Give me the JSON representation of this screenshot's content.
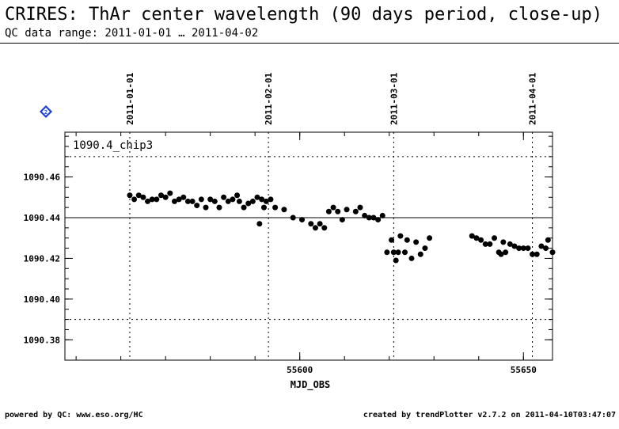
{
  "header": {
    "title": "CRIRES: ThAr center wavelength (90 days period, close-up)",
    "subtitle": "QC data range: 2011-01-01 … 2011-04-02"
  },
  "footer": {
    "left": "powered by QC: www.eso.org/HC",
    "right": "created by trendPlotter v2.7.2 on 2011-04-10T03:47:07"
  },
  "help_icon": "help-diamond-icon",
  "chart_data": {
    "type": "scatter",
    "panel_label": "1090.4_chip3",
    "xlabel": "MJD_OBS",
    "ylabel": "",
    "xlim": [
      55547.5,
      55656.5
    ],
    "ylim": [
      1090.37,
      1090.482
    ],
    "x_ticks": [
      55600,
      55650
    ],
    "y_ticks": [
      1090.38,
      1090.4,
      1090.42,
      1090.44,
      1090.46
    ],
    "y_tick_labels": [
      "1090.38",
      "1090.40",
      "1090.42",
      "1090.44",
      "1090.46"
    ],
    "reference_line": 1090.44,
    "limit_lines": [
      1090.39,
      1090.47
    ],
    "date_markers": [
      {
        "x": 55562,
        "label": "2011-01-01"
      },
      {
        "x": 55593,
        "label": "2011-02-01"
      },
      {
        "x": 55621,
        "label": "2011-03-01"
      },
      {
        "x": 55652,
        "label": "2011-04-01"
      }
    ],
    "points": [
      [
        55562.0,
        1090.451
      ],
      [
        55563.0,
        1090.449
      ],
      [
        55564.0,
        1090.451
      ],
      [
        55565.0,
        1090.45
      ],
      [
        55566.0,
        1090.448
      ],
      [
        55567.0,
        1090.449
      ],
      [
        55568.0,
        1090.449
      ],
      [
        55569.0,
        1090.451
      ],
      [
        55570.0,
        1090.45
      ],
      [
        55571.0,
        1090.452
      ],
      [
        55572.0,
        1090.448
      ],
      [
        55573.0,
        1090.449
      ],
      [
        55574.0,
        1090.45
      ],
      [
        55575.0,
        1090.448
      ],
      [
        55576.0,
        1090.448
      ],
      [
        55577.0,
        1090.446
      ],
      [
        55578.0,
        1090.449
      ],
      [
        55579.0,
        1090.445
      ],
      [
        55580.0,
        1090.449
      ],
      [
        55581.0,
        1090.448
      ],
      [
        55582.0,
        1090.445
      ],
      [
        55583.0,
        1090.45
      ],
      [
        55584.0,
        1090.448
      ],
      [
        55585.0,
        1090.449
      ],
      [
        55586.0,
        1090.451
      ],
      [
        55586.5,
        1090.448
      ],
      [
        55587.5,
        1090.445
      ],
      [
        55588.5,
        1090.447
      ],
      [
        55589.5,
        1090.448
      ],
      [
        55590.5,
        1090.45
      ],
      [
        55591.0,
        1090.437
      ],
      [
        55591.5,
        1090.449
      ],
      [
        55592.0,
        1090.445
      ],
      [
        55592.5,
        1090.448
      ],
      [
        55593.5,
        1090.449
      ],
      [
        55594.5,
        1090.445
      ],
      [
        55596.5,
        1090.444
      ],
      [
        55598.5,
        1090.44
      ],
      [
        55600.5,
        1090.439
      ],
      [
        55602.5,
        1090.437
      ],
      [
        55603.5,
        1090.435
      ],
      [
        55604.5,
        1090.437
      ],
      [
        55605.5,
        1090.435
      ],
      [
        55606.5,
        1090.443
      ],
      [
        55607.5,
        1090.445
      ],
      [
        55608.5,
        1090.443
      ],
      [
        55609.5,
        1090.439
      ],
      [
        55610.5,
        1090.444
      ],
      [
        55612.5,
        1090.443
      ],
      [
        55613.5,
        1090.445
      ],
      [
        55614.5,
        1090.441
      ],
      [
        55615.5,
        1090.44
      ],
      [
        55616.5,
        1090.44
      ],
      [
        55617.5,
        1090.439
      ],
      [
        55618.5,
        1090.441
      ],
      [
        55619.5,
        1090.423
      ],
      [
        55620.5,
        1090.429
      ],
      [
        55621.0,
        1090.423
      ],
      [
        55621.5,
        1090.419
      ],
      [
        55622.0,
        1090.423
      ],
      [
        55622.5,
        1090.431
      ],
      [
        55623.5,
        1090.423
      ],
      [
        55624.0,
        1090.429
      ],
      [
        55625.0,
        1090.42
      ],
      [
        55626.0,
        1090.428
      ],
      [
        55627.0,
        1090.422
      ],
      [
        55628.0,
        1090.425
      ],
      [
        55629.0,
        1090.43
      ],
      [
        55638.5,
        1090.431
      ],
      [
        55639.5,
        1090.43
      ],
      [
        55640.5,
        1090.429
      ],
      [
        55641.5,
        1090.427
      ],
      [
        55642.5,
        1090.427
      ],
      [
        55643.5,
        1090.43
      ],
      [
        55644.5,
        1090.423
      ],
      [
        55645.0,
        1090.422
      ],
      [
        55645.5,
        1090.428
      ],
      [
        55646.0,
        1090.423
      ],
      [
        55647.0,
        1090.427
      ],
      [
        55648.0,
        1090.426
      ],
      [
        55649.0,
        1090.425
      ],
      [
        55650.0,
        1090.425
      ],
      [
        55651.0,
        1090.425
      ],
      [
        55652.0,
        1090.422
      ],
      [
        55653.0,
        1090.422
      ],
      [
        55654.0,
        1090.426
      ],
      [
        55655.0,
        1090.425
      ],
      [
        55655.5,
        1090.429
      ],
      [
        55656.5,
        1090.423
      ]
    ]
  }
}
